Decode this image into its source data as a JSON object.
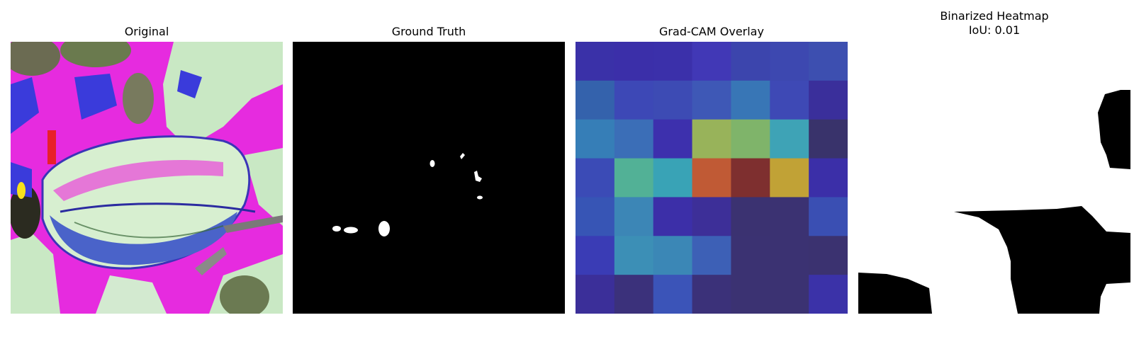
{
  "panels": {
    "original": {
      "title": "Original"
    },
    "ground_truth": {
      "title": "Ground Truth"
    },
    "overlay": {
      "title": "Grad-CAM Overlay",
      "grid": [
        [
          "#3a31a8",
          "#3b2fa9",
          "#3b30aa",
          "#4138b6",
          "#3c45ad",
          "#3d48b0",
          "#3d4fb0"
        ],
        [
          "#3462ac",
          "#3d48b6",
          "#3d4bb4",
          "#3e58b6",
          "#3876b6",
          "#3e49b5",
          "#3a2f9b"
        ],
        [
          "#367eb7",
          "#3b6eb7",
          "#3d30ad",
          "#98b35a",
          "#7fb46a",
          "#3ea3b6",
          "#39336b"
        ],
        [
          "#3b4bb6",
          "#52b196",
          "#39a3b6",
          "#c05a35",
          "#7e2f2f",
          "#c1a236",
          "#3b2fa8"
        ],
        [
          "#3755b5",
          "#3c86b6",
          "#3c2fa8",
          "#3d2f98",
          "#3b3271",
          "#3b3272",
          "#3a4fb3"
        ],
        [
          "#3a3cb5",
          "#3c8fb6",
          "#3b87b6",
          "#3d60b6",
          "#3b3272",
          "#3b3272",
          "#3b3270"
        ],
        [
          "#3b2f99",
          "#3b317b",
          "#3b54b8",
          "#3b3179",
          "#3b3272",
          "#3b3272",
          "#3b32a8"
        ]
      ]
    },
    "binarized": {
      "title_line1": "Binarized Heatmap",
      "title_line2": "IoU: 0.01"
    }
  }
}
